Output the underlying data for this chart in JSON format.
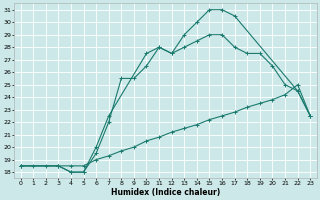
{
  "xlabel": "Humidex (Indice chaleur)",
  "bg_color": "#cde8e8",
  "grid_color": "#ffffff",
  "line_color": "#1a7a6e",
  "xlim": [
    -0.5,
    23.5
  ],
  "ylim": [
    17.5,
    31.5
  ],
  "xticks": [
    0,
    1,
    2,
    3,
    4,
    5,
    6,
    7,
    8,
    9,
    10,
    11,
    12,
    13,
    14,
    15,
    16,
    17,
    18,
    19,
    20,
    21,
    22,
    23
  ],
  "yticks": [
    18,
    19,
    20,
    21,
    22,
    23,
    24,
    25,
    26,
    27,
    28,
    29,
    30,
    31
  ],
  "curve_upper_x": [
    0,
    3,
    4,
    5,
    6,
    7,
    10,
    11,
    12,
    13,
    14,
    15,
    16,
    17,
    22,
    23
  ],
  "curve_upper_y": [
    18.5,
    18.5,
    18.0,
    18.0,
    20.0,
    22.5,
    27.5,
    28.0,
    27.5,
    29.0,
    30.0,
    31.0,
    31.0,
    30.5,
    24.5,
    22.5
  ],
  "curve_mid_x": [
    0,
    3,
    4,
    5,
    6,
    7,
    8,
    9,
    10,
    11,
    12,
    13,
    14,
    15,
    16,
    17,
    18,
    19,
    20,
    21,
    22,
    23
  ],
  "curve_mid_y": [
    18.5,
    18.5,
    18.0,
    18.0,
    19.5,
    22.0,
    25.5,
    25.5,
    26.5,
    28.0,
    27.5,
    28.0,
    28.5,
    29.0,
    29.0,
    28.0,
    27.5,
    27.5,
    26.5,
    25.0,
    24.5,
    22.5
  ],
  "curve_low_x": [
    0,
    1,
    2,
    3,
    4,
    5,
    6,
    7,
    8,
    9,
    10,
    11,
    12,
    13,
    14,
    15,
    16,
    17,
    18,
    19,
    20,
    21,
    22,
    23
  ],
  "curve_low_y": [
    18.5,
    18.5,
    18.5,
    18.5,
    18.5,
    18.5,
    19.0,
    19.3,
    19.7,
    20.0,
    20.5,
    20.8,
    21.2,
    21.5,
    21.8,
    22.2,
    22.5,
    22.8,
    23.2,
    23.5,
    23.8,
    24.2,
    25.0,
    22.5
  ]
}
